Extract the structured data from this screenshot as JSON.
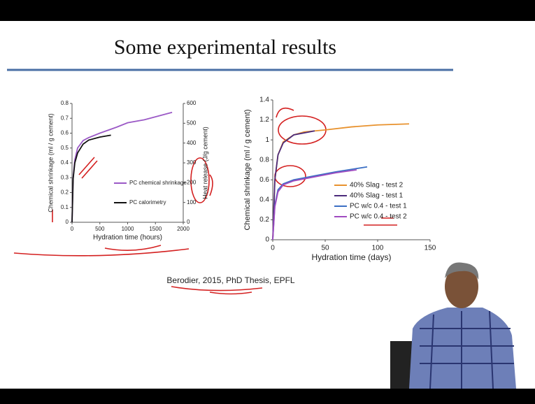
{
  "slide": {
    "title": "Some experimental results",
    "citation": "Berodier, 2015, PhD Thesis, EPFL"
  },
  "chart_data": [
    {
      "type": "line",
      "x_label": "Hydration time (hours)",
      "y_label": "Chemical shrinkage (ml / g cement)",
      "y2_label": "Heat release (J/g cement)",
      "xlim": [
        0,
        2000
      ],
      "xticks": [
        0,
        500,
        1000,
        1500,
        2000
      ],
      "ylim": [
        0,
        0.8
      ],
      "yticks": [
        0,
        0.1,
        0.2,
        0.3,
        0.4,
        0.5,
        0.6,
        0.7,
        0.8
      ],
      "y2lim": [
        0,
        600
      ],
      "y2ticks": [
        0,
        100,
        200,
        300,
        400,
        500,
        600
      ],
      "series": [
        {
          "name": "PC chemical shrinkage",
          "color": "#9b59c6",
          "x": [
            0,
            20,
            50,
            100,
            200,
            300,
            500,
            800,
            1000,
            1300,
            1500,
            1800
          ],
          "values": [
            0,
            0.3,
            0.42,
            0.5,
            0.55,
            0.57,
            0.6,
            0.64,
            0.67,
            0.69,
            0.71,
            0.74
          ]
        },
        {
          "name": "PC calorimetry",
          "color": "#111111",
          "axis": "y2",
          "x": [
            0,
            20,
            50,
            100,
            200,
            300,
            500,
            700
          ],
          "values": [
            0,
            220,
            300,
            350,
            395,
            415,
            430,
            440
          ]
        }
      ]
    },
    {
      "type": "line",
      "x_label": "Hydration time (days)",
      "y_label": "Chemical shrinkage (ml / g cement)",
      "xlim": [
        0,
        150
      ],
      "xticks": [
        0,
        50,
        100,
        150
      ],
      "ylim": [
        0,
        1.4
      ],
      "yticks": [
        0,
        0.2,
        0.4,
        0.6,
        0.8,
        1,
        1.2,
        1.4
      ],
      "series": [
        {
          "name": "40% Slag - test 2",
          "color": "#e8922e",
          "x": [
            0,
            2,
            5,
            10,
            20,
            30,
            50,
            75,
            100,
            130
          ],
          "values": [
            0,
            0.6,
            0.85,
            0.98,
            1.05,
            1.08,
            1.1,
            1.13,
            1.15,
            1.16
          ]
        },
        {
          "name": "40% Slag - test 1",
          "color": "#4b2a7b",
          "x": [
            0,
            2,
            5,
            10,
            20,
            30,
            40
          ],
          "values": [
            0,
            0.6,
            0.85,
            0.97,
            1.05,
            1.07,
            1.09
          ]
        },
        {
          "name": "PC w/c 0.4 - test 1",
          "color": "#3b6fc4",
          "x": [
            0,
            2,
            5,
            10,
            20,
            40,
            60,
            90
          ],
          "values": [
            0,
            0.35,
            0.5,
            0.56,
            0.6,
            0.64,
            0.68,
            0.73
          ]
        },
        {
          "name": "PC w/c 0.4 - test 2",
          "color": "#a04bc0",
          "x": [
            0,
            2,
            5,
            10,
            20,
            40,
            60,
            80
          ],
          "values": [
            0,
            0.33,
            0.48,
            0.55,
            0.59,
            0.63,
            0.67,
            0.7
          ]
        }
      ]
    }
  ]
}
